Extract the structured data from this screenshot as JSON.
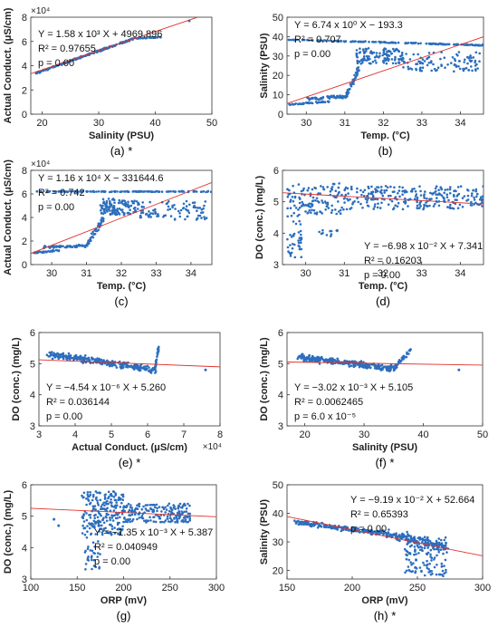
{
  "chart_data": [
    {
      "type": "scatter",
      "panel_label": "(a) *",
      "xlabel": "Salinity (PSU)",
      "ylabel": "Actual Conduct. (μS/cm)",
      "xlim": [
        18,
        50
      ],
      "ylim": [
        0,
        80000
      ],
      "xticks": [
        "20",
        "30",
        "40",
        "50"
      ],
      "yticks": [
        "0",
        "2",
        "4",
        "6",
        "8"
      ],
      "y_exponent": "×10⁴",
      "annotations": [
        "Y = 1.58 x 10³ X + 4969.896",
        "R² = 0.97655",
        "p = 0.00"
      ],
      "fit": {
        "slope": 1580,
        "intercept": 4969.896
      },
      "series": [
        {
          "type": "scatter_clusters",
          "clusters": [
            {
              "x": [
                19,
                36
              ],
              "y": [
                34000,
                62000
              ],
              "n": 200,
              "mode": "line",
              "noise": [
                0.3,
                800
              ]
            },
            {
              "x": [
                36,
                41
              ],
              "y": [
                62500,
                63500
              ],
              "n": 40,
              "mode": "line",
              "noise": [
                0.2,
                400
              ]
            }
          ],
          "points": [
            [
              46,
              77000
            ]
          ]
        }
      ]
    },
    {
      "type": "scatter",
      "panel_label": "(b)",
      "xlabel": "Temp. (°C)",
      "ylabel": "Salinity (PSU)",
      "xlim": [
        29.5,
        34.6
      ],
      "ylim": [
        0,
        50
      ],
      "xticks": [
        "30",
        "31",
        "32",
        "33",
        "34"
      ],
      "yticks": [
        "0",
        "10",
        "20",
        "30",
        "40",
        "50"
      ],
      "annotations": [
        "Y = 6.74 x 10⁰ X − 193.3",
        "R² = 0.707",
        "p = 0.00"
      ],
      "fit": {
        "slope": 6.74,
        "intercept": -193.3
      },
      "series": [
        {
          "type": "scatter_clusters",
          "clusters": [
            {
              "x": [
                29.5,
                34.6
              ],
              "y": [
                38.5,
                35.5
              ],
              "n": 160,
              "mode": "line",
              "noise": [
                0.05,
                0.4
              ]
            },
            {
              "x": [
                29.5,
                30.6
              ],
              "y": [
                5,
                6.5
              ],
              "n": 40,
              "mode": "line",
              "noise": [
                0.05,
                0.6
              ]
            },
            {
              "x": [
                30.0,
                31.0
              ],
              "y": [
                8,
                9
              ],
              "n": 60,
              "mode": "line",
              "noise": [
                0.05,
                1.2
              ]
            },
            {
              "x": [
                31.0,
                31.4
              ],
              "y": [
                8,
                25
              ],
              "n": 50,
              "mode": "line",
              "noise": [
                0.06,
                3
              ]
            },
            {
              "x": [
                31.3,
                32.5
              ],
              "y": [
                26,
                34
              ],
              "n": 120,
              "mode": "cloud"
            },
            {
              "x": [
                32.5,
                34.5
              ],
              "y": [
                22,
                32
              ],
              "n": 100,
              "mode": "cloud"
            }
          ],
          "points": []
        }
      ]
    },
    {
      "type": "scatter",
      "panel_label": "(c)",
      "xlabel": "Temp. (°C)",
      "ylabel": "Actual Conduct. (μS/cm)",
      "xlim": [
        29.4,
        34.6
      ],
      "ylim": [
        0,
        80000
      ],
      "xticks": [
        "30",
        "31",
        "32",
        "33",
        "34"
      ],
      "yticks": [
        "0",
        "2",
        "4",
        "6",
        "8"
      ],
      "y_exponent": "×10⁴",
      "annotations": [
        "Y = 1.16 x 10⁴ X − 331644.6",
        "R² = 0.742",
        "p = 0.00"
      ],
      "fit": {
        "slope": 11600,
        "intercept": -331644.6
      },
      "series": [
        {
          "type": "scatter_clusters",
          "clusters": [
            {
              "x": [
                29.5,
                34.6
              ],
              "y": [
                62000,
                62000
              ],
              "n": 150,
              "mode": "line",
              "noise": [
                0.05,
                500
              ]
            },
            {
              "x": [
                29.5,
                30.2
              ],
              "y": [
                10000,
                12000
              ],
              "n": 40,
              "mode": "line",
              "noise": [
                0.05,
                1000
              ]
            },
            {
              "x": [
                29.8,
                31.0
              ],
              "y": [
                15000,
                16000
              ],
              "n": 60,
              "mode": "line",
              "noise": [
                0.05,
                1500
              ]
            },
            {
              "x": [
                31.0,
                31.5
              ],
              "y": [
                16000,
                40000
              ],
              "n": 50,
              "mode": "line",
              "noise": [
                0.06,
                4000
              ]
            },
            {
              "x": [
                31.4,
                32.5
              ],
              "y": [
                42000,
                56000
              ],
              "n": 120,
              "mode": "cloud"
            },
            {
              "x": [
                32.5,
                34.5
              ],
              "y": [
                38000,
                54000
              ],
              "n": 90,
              "mode": "cloud"
            }
          ],
          "points": []
        }
      ]
    },
    {
      "type": "scatter",
      "panel_label": "(d)",
      "xlabel": "Temp. (°C)",
      "ylabel": "DO (conc.) (mg/L)",
      "xlim": [
        29.4,
        34.6
      ],
      "ylim": [
        3,
        6
      ],
      "xticks": [
        "30",
        "31",
        "32",
        "33",
        "34"
      ],
      "yticks": [
        "3",
        "4",
        "5",
        "6"
      ],
      "annotations": [
        "Y = −6.98 x 10⁻² X + 7.341",
        "R² = 0.16203",
        "p = 0.00"
      ],
      "fit": {
        "slope": -0.0698,
        "intercept": 7.341
      },
      "series": [
        {
          "type": "scatter_clusters",
          "clusters": [
            {
              "x": [
                29.5,
                31.0
              ],
              "y": [
                4.6,
                5.6
              ],
              "n": 120,
              "mode": "cloud"
            },
            {
              "x": [
                29.5,
                29.9
              ],
              "y": [
                3.2,
                4.6
              ],
              "n": 40,
              "mode": "cloud"
            },
            {
              "x": [
                31.0,
                34.6
              ],
              "y": [
                4.75,
                5.5
              ],
              "n": 260,
              "mode": "cloud"
            },
            {
              "x": [
                30.2,
                30.9
              ],
              "y": [
                3.9,
                4.1
              ],
              "n": 12,
              "mode": "cloud"
            }
          ],
          "points": []
        }
      ]
    },
    {
      "type": "scatter",
      "panel_label": "(e) *",
      "xlabel": "Actual Conduct. (μS/cm)",
      "ylabel": "DO (conc.) (mg/L)",
      "xlim": [
        30000,
        80000
      ],
      "ylim": [
        3,
        6
      ],
      "xticks": [
        "3",
        "4",
        "5",
        "6",
        "7",
        "8"
      ],
      "yticks": [
        "3",
        "4",
        "5",
        "6"
      ],
      "x_exponent": "×10⁴",
      "annotations": [
        "Y = −4.54 x 10⁻⁶ X + 5.260",
        "R² = 0.036144",
        "p = 0.00"
      ],
      "fit": {
        "slope": -4.54e-06,
        "intercept": 5.26
      },
      "series": [
        {
          "type": "scatter_clusters",
          "clusters": [
            {
              "x": [
                33000,
                62000
              ],
              "y": [
                5.3,
                4.8
              ],
              "n": 300,
              "mode": "line",
              "noise": [
                1500,
                0.15
              ]
            },
            {
              "x": [
                62000,
                63000
              ],
              "y": [
                4.8,
                5.5
              ],
              "n": 30,
              "mode": "line",
              "noise": [
                300,
                0.1
              ]
            }
          ],
          "points": [
            [
              76000,
              4.8
            ]
          ]
        }
      ]
    },
    {
      "type": "scatter",
      "panel_label": "(f) *",
      "xlabel": "Salinity (PSU)",
      "ylabel": "DO (conc.) (mg/L)",
      "xlim": [
        17,
        50
      ],
      "ylim": [
        3,
        6
      ],
      "xticks": [
        "20",
        "30",
        "40",
        "50"
      ],
      "yticks": [
        "3",
        "4",
        "5",
        "6"
      ],
      "annotations": [
        "Y = −3.02 x 10⁻³ X + 5.105",
        "R² = 0.0062465",
        "p = 6.0 x 10⁻⁵"
      ],
      "fit": {
        "slope": -0.00302,
        "intercept": 5.105
      },
      "series": [
        {
          "type": "scatter_clusters",
          "clusters": [
            {
              "x": [
                19,
                35
              ],
              "y": [
                5.2,
                4.85
              ],
              "n": 300,
              "mode": "line",
              "noise": [
                0.8,
                0.15
              ]
            },
            {
              "x": [
                35,
                38
              ],
              "y": [
                4.85,
                5.45
              ],
              "n": 40,
              "mode": "line",
              "noise": [
                0.3,
                0.1
              ]
            }
          ],
          "points": [
            [
              46,
              4.8
            ]
          ]
        }
      ]
    },
    {
      "type": "scatter",
      "panel_label": "(g)",
      "xlabel": "ORP (mV)",
      "ylabel": "DO (conc.) (mg/L)",
      "xlim": [
        100,
        300
      ],
      "ylim": [
        3,
        6
      ],
      "xticks": [
        "100",
        "150",
        "200",
        "250",
        "300"
      ],
      "yticks": [
        "3",
        "4",
        "5",
        "6"
      ],
      "annotations": [
        "Y = −1.35 x 10⁻³ X + 5.387",
        "R² = 0.040949",
        "p = 0.00"
      ],
      "fit": {
        "slope": -0.00135,
        "intercept": 5.387
      },
      "series": [
        {
          "type": "scatter_clusters",
          "clusters": [
            {
              "x": [
                155,
                200
              ],
              "y": [
                4.4,
                5.8
              ],
              "n": 220,
              "mode": "cloud"
            },
            {
              "x": [
                200,
                272
              ],
              "y": [
                4.8,
                5.4
              ],
              "n": 200,
              "mode": "cloud"
            },
            {
              "x": [
                158,
                175
              ],
              "y": [
                3.3,
                4.4
              ],
              "n": 30,
              "mode": "cloud"
            }
          ],
          "points": [
            [
              125,
              4.9
            ],
            [
              130,
              4.7
            ]
          ]
        }
      ]
    },
    {
      "type": "scatter",
      "panel_label": "(h) *",
      "xlabel": "ORP (mV)",
      "ylabel": "Salinity (PSU)",
      "xlim": [
        150,
        300
      ],
      "ylim": [
        17,
        50
      ],
      "xticks": [
        "150",
        "200",
        "250",
        "300"
      ],
      "yticks": [
        "20",
        "30",
        "40",
        "50"
      ],
      "annotations": [
        "Y = −9.19 x 10⁻² X + 52.664",
        "R² = 0.65393",
        "p = 0.00"
      ],
      "fit": {
        "slope": -0.0919,
        "intercept": 52.664
      },
      "series": [
        {
          "type": "scatter_clusters",
          "clusters": [
            {
              "x": [
                155,
                225
              ],
              "y": [
                37,
                33
              ],
              "n": 200,
              "mode": "line",
              "noise": [
                3,
                1.2
              ]
            },
            {
              "x": [
                225,
                272
              ],
              "y": [
                33,
                28
              ],
              "n": 150,
              "mode": "line",
              "noise": [
                3,
                2.5
              ]
            },
            {
              "x": [
                240,
                272
              ],
              "y": [
                18,
                32
              ],
              "n": 120,
              "mode": "cloud"
            }
          ],
          "points": []
        }
      ]
    }
  ]
}
